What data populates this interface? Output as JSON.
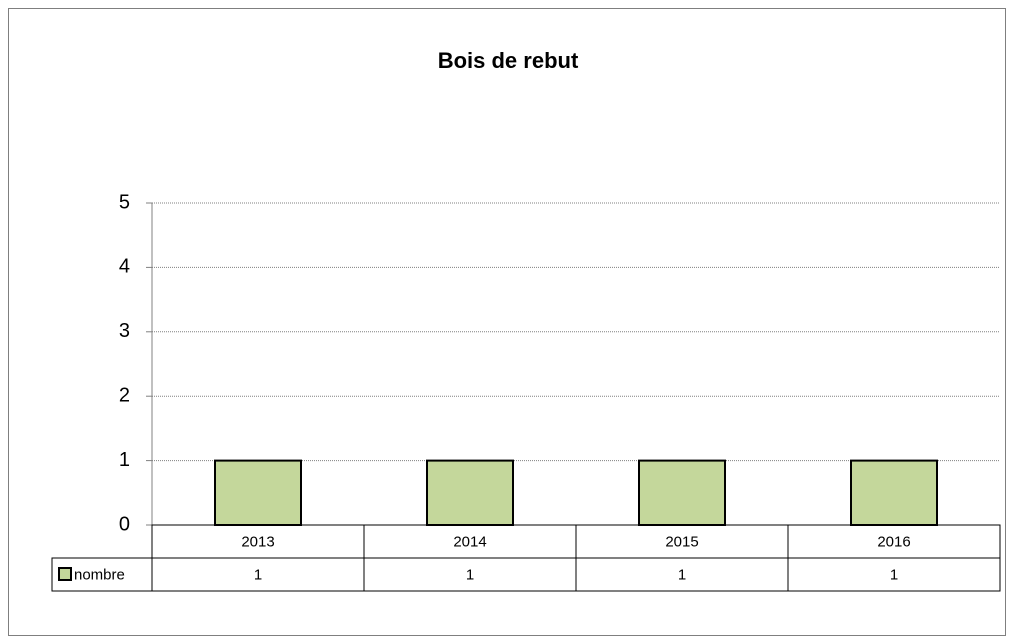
{
  "chart_data": {
    "type": "bar",
    "title": "Bois de rebut",
    "categories": [
      "2013",
      "2014",
      "2015",
      "2016"
    ],
    "series": [
      {
        "name": "nombre",
        "color": "#c4d79b",
        "values": [
          1,
          1,
          1,
          1
        ]
      }
    ],
    "ylim": [
      0,
      5
    ],
    "yticks": [
      0,
      1,
      2,
      3,
      4,
      5
    ],
    "grid": true,
    "data_table": true
  }
}
